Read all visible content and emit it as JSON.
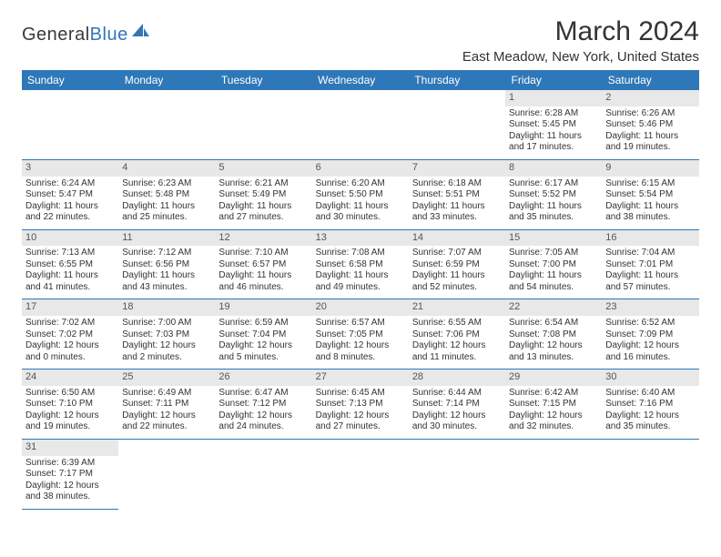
{
  "brand": {
    "part1": "General",
    "part2": "Blue"
  },
  "title": "March 2024",
  "location": "East Meadow, New York, United States",
  "colors": {
    "header_bg": "#2e77b8",
    "header_text": "#ffffff",
    "daynum_bg": "#e8e8e8",
    "text": "#333333",
    "border": "#2e77b8"
  },
  "weekdays": [
    "Sunday",
    "Monday",
    "Tuesday",
    "Wednesday",
    "Thursday",
    "Friday",
    "Saturday"
  ],
  "weeks": [
    [
      null,
      null,
      null,
      null,
      null,
      {
        "n": "1",
        "sr": "Sunrise: 6:28 AM",
        "ss": "Sunset: 5:45 PM",
        "d1": "Daylight: 11 hours",
        "d2": "and 17 minutes."
      },
      {
        "n": "2",
        "sr": "Sunrise: 6:26 AM",
        "ss": "Sunset: 5:46 PM",
        "d1": "Daylight: 11 hours",
        "d2": "and 19 minutes."
      }
    ],
    [
      {
        "n": "3",
        "sr": "Sunrise: 6:24 AM",
        "ss": "Sunset: 5:47 PM",
        "d1": "Daylight: 11 hours",
        "d2": "and 22 minutes."
      },
      {
        "n": "4",
        "sr": "Sunrise: 6:23 AM",
        "ss": "Sunset: 5:48 PM",
        "d1": "Daylight: 11 hours",
        "d2": "and 25 minutes."
      },
      {
        "n": "5",
        "sr": "Sunrise: 6:21 AM",
        "ss": "Sunset: 5:49 PM",
        "d1": "Daylight: 11 hours",
        "d2": "and 27 minutes."
      },
      {
        "n": "6",
        "sr": "Sunrise: 6:20 AM",
        "ss": "Sunset: 5:50 PM",
        "d1": "Daylight: 11 hours",
        "d2": "and 30 minutes."
      },
      {
        "n": "7",
        "sr": "Sunrise: 6:18 AM",
        "ss": "Sunset: 5:51 PM",
        "d1": "Daylight: 11 hours",
        "d2": "and 33 minutes."
      },
      {
        "n": "8",
        "sr": "Sunrise: 6:17 AM",
        "ss": "Sunset: 5:52 PM",
        "d1": "Daylight: 11 hours",
        "d2": "and 35 minutes."
      },
      {
        "n": "9",
        "sr": "Sunrise: 6:15 AM",
        "ss": "Sunset: 5:54 PM",
        "d1": "Daylight: 11 hours",
        "d2": "and 38 minutes."
      }
    ],
    [
      {
        "n": "10",
        "sr": "Sunrise: 7:13 AM",
        "ss": "Sunset: 6:55 PM",
        "d1": "Daylight: 11 hours",
        "d2": "and 41 minutes."
      },
      {
        "n": "11",
        "sr": "Sunrise: 7:12 AM",
        "ss": "Sunset: 6:56 PM",
        "d1": "Daylight: 11 hours",
        "d2": "and 43 minutes."
      },
      {
        "n": "12",
        "sr": "Sunrise: 7:10 AM",
        "ss": "Sunset: 6:57 PM",
        "d1": "Daylight: 11 hours",
        "d2": "and 46 minutes."
      },
      {
        "n": "13",
        "sr": "Sunrise: 7:08 AM",
        "ss": "Sunset: 6:58 PM",
        "d1": "Daylight: 11 hours",
        "d2": "and 49 minutes."
      },
      {
        "n": "14",
        "sr": "Sunrise: 7:07 AM",
        "ss": "Sunset: 6:59 PM",
        "d1": "Daylight: 11 hours",
        "d2": "and 52 minutes."
      },
      {
        "n": "15",
        "sr": "Sunrise: 7:05 AM",
        "ss": "Sunset: 7:00 PM",
        "d1": "Daylight: 11 hours",
        "d2": "and 54 minutes."
      },
      {
        "n": "16",
        "sr": "Sunrise: 7:04 AM",
        "ss": "Sunset: 7:01 PM",
        "d1": "Daylight: 11 hours",
        "d2": "and 57 minutes."
      }
    ],
    [
      {
        "n": "17",
        "sr": "Sunrise: 7:02 AM",
        "ss": "Sunset: 7:02 PM",
        "d1": "Daylight: 12 hours",
        "d2": "and 0 minutes."
      },
      {
        "n": "18",
        "sr": "Sunrise: 7:00 AM",
        "ss": "Sunset: 7:03 PM",
        "d1": "Daylight: 12 hours",
        "d2": "and 2 minutes."
      },
      {
        "n": "19",
        "sr": "Sunrise: 6:59 AM",
        "ss": "Sunset: 7:04 PM",
        "d1": "Daylight: 12 hours",
        "d2": "and 5 minutes."
      },
      {
        "n": "20",
        "sr": "Sunrise: 6:57 AM",
        "ss": "Sunset: 7:05 PM",
        "d1": "Daylight: 12 hours",
        "d2": "and 8 minutes."
      },
      {
        "n": "21",
        "sr": "Sunrise: 6:55 AM",
        "ss": "Sunset: 7:06 PM",
        "d1": "Daylight: 12 hours",
        "d2": "and 11 minutes."
      },
      {
        "n": "22",
        "sr": "Sunrise: 6:54 AM",
        "ss": "Sunset: 7:08 PM",
        "d1": "Daylight: 12 hours",
        "d2": "and 13 minutes."
      },
      {
        "n": "23",
        "sr": "Sunrise: 6:52 AM",
        "ss": "Sunset: 7:09 PM",
        "d1": "Daylight: 12 hours",
        "d2": "and 16 minutes."
      }
    ],
    [
      {
        "n": "24",
        "sr": "Sunrise: 6:50 AM",
        "ss": "Sunset: 7:10 PM",
        "d1": "Daylight: 12 hours",
        "d2": "and 19 minutes."
      },
      {
        "n": "25",
        "sr": "Sunrise: 6:49 AM",
        "ss": "Sunset: 7:11 PM",
        "d1": "Daylight: 12 hours",
        "d2": "and 22 minutes."
      },
      {
        "n": "26",
        "sr": "Sunrise: 6:47 AM",
        "ss": "Sunset: 7:12 PM",
        "d1": "Daylight: 12 hours",
        "d2": "and 24 minutes."
      },
      {
        "n": "27",
        "sr": "Sunrise: 6:45 AM",
        "ss": "Sunset: 7:13 PM",
        "d1": "Daylight: 12 hours",
        "d2": "and 27 minutes."
      },
      {
        "n": "28",
        "sr": "Sunrise: 6:44 AM",
        "ss": "Sunset: 7:14 PM",
        "d1": "Daylight: 12 hours",
        "d2": "and 30 minutes."
      },
      {
        "n": "29",
        "sr": "Sunrise: 6:42 AM",
        "ss": "Sunset: 7:15 PM",
        "d1": "Daylight: 12 hours",
        "d2": "and 32 minutes."
      },
      {
        "n": "30",
        "sr": "Sunrise: 6:40 AM",
        "ss": "Sunset: 7:16 PM",
        "d1": "Daylight: 12 hours",
        "d2": "and 35 minutes."
      }
    ],
    [
      {
        "n": "31",
        "sr": "Sunrise: 6:39 AM",
        "ss": "Sunset: 7:17 PM",
        "d1": "Daylight: 12 hours",
        "d2": "and 38 minutes."
      },
      null,
      null,
      null,
      null,
      null,
      null
    ]
  ]
}
